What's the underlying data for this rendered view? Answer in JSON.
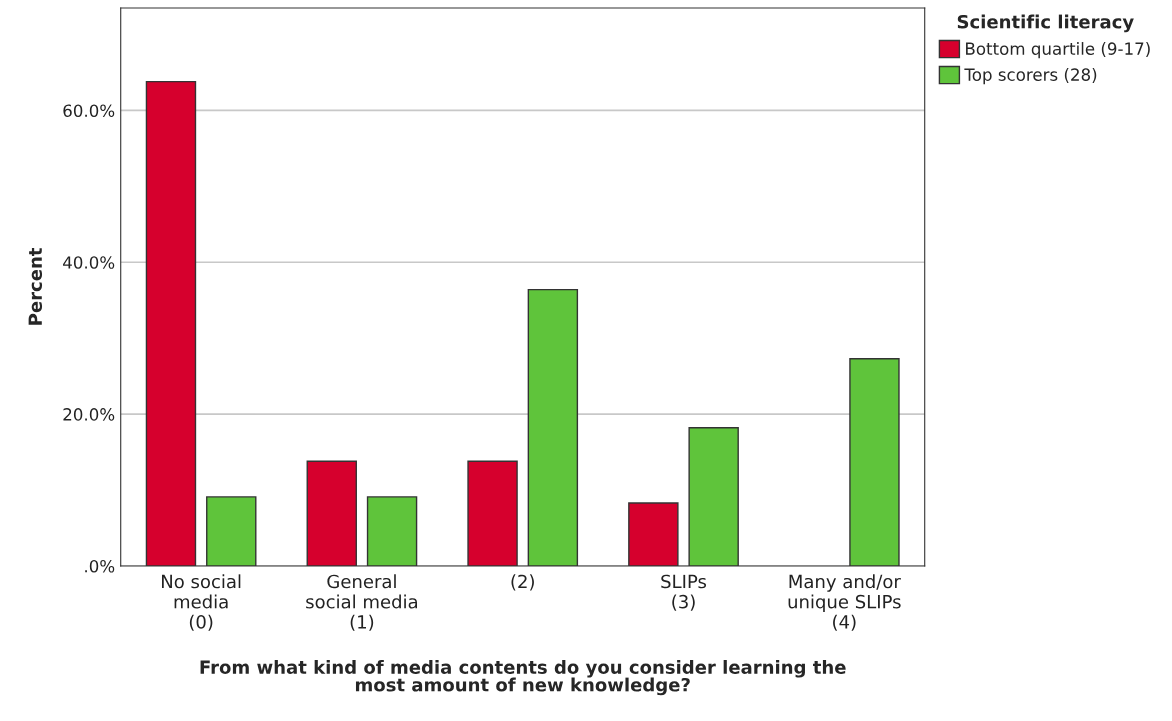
{
  "chart_data": {
    "type": "bar",
    "xlabel": "From what kind of media contents do you consider learning the\nmost amount of new knowledge?",
    "ylabel": "Percent",
    "legend_title": "Scientific literacy",
    "categories": [
      "No social\nmedia\n(0)",
      "General\nsocial media\n(1)",
      "(2)",
      "SLIPs\n(3)",
      "Many and/or\nunique SLIPs\n(4)"
    ],
    "series": [
      {
        "name": "Bottom quartile (9-17)",
        "color": "#d6002d",
        "values": [
          63.8,
          13.8,
          13.8,
          8.3,
          null
        ]
      },
      {
        "name": "Top scorers (28)",
        "color": "#5fc43b",
        "values": [
          9.1,
          9.1,
          36.4,
          18.2,
          27.3
        ]
      }
    ],
    "ylim": [
      0,
      73.5
    ],
    "yticks": [
      {
        "value": 0,
        "label": ".0%"
      },
      {
        "value": 20,
        "label": "20.0%"
      },
      {
        "value": 40,
        "label": "40.0%"
      },
      {
        "value": 60,
        "label": "60.0%"
      }
    ],
    "grid": "y",
    "legend": "right"
  }
}
